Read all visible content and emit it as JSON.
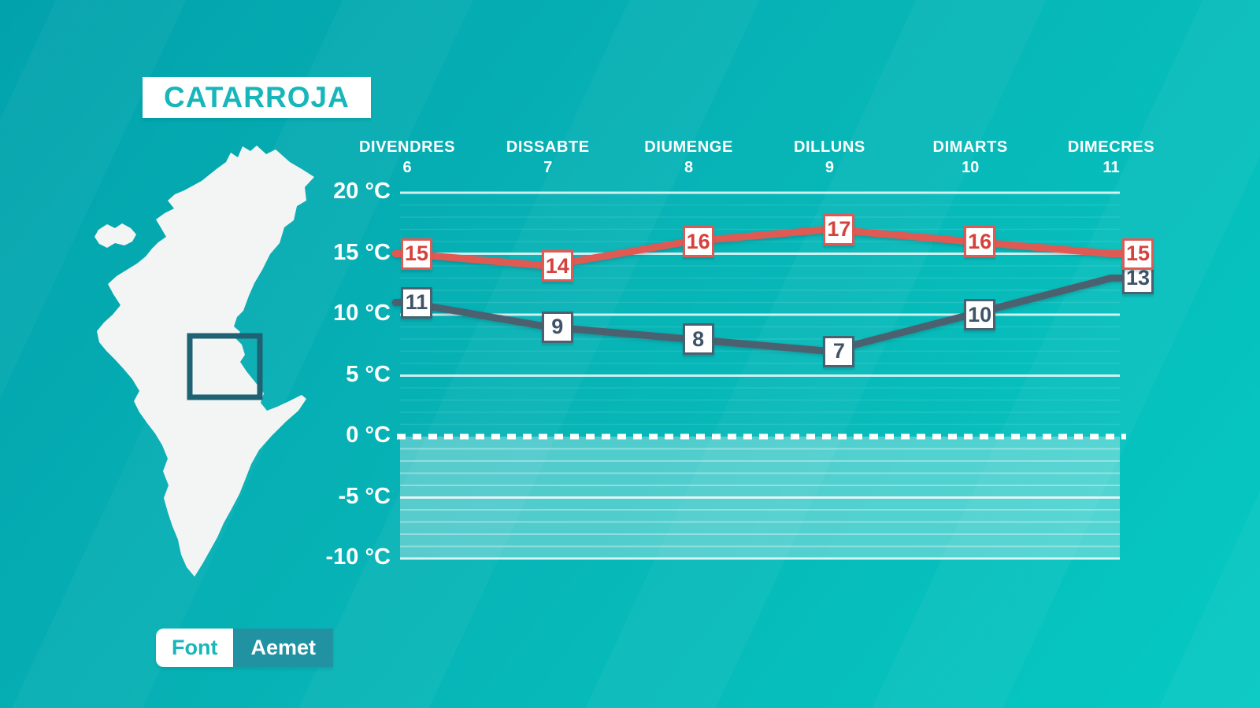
{
  "title": "CATARROJA",
  "source": {
    "label": "Font",
    "value": "Aemet"
  },
  "map": {
    "region": "valencia-community-silhouette",
    "highlight": "catarroja-location-square"
  },
  "colors": {
    "background_start": "#02a2ac",
    "background_end": "#06c9c3",
    "title_text": "#17b6ba",
    "max_series": "#e05a54",
    "min_series": "#4b6170",
    "source_value_bg": "#2092a2",
    "map_fill": "#f3f5f5",
    "map_square_stroke": "#1e6273",
    "grid_color": "#ffffff"
  },
  "chart_data": {
    "type": "line",
    "title": "",
    "categories": [
      "DIVENDRES",
      "DISSABTE",
      "DIUMENGE",
      "DILLUNS",
      "DIMARTS",
      "DIMECRES"
    ],
    "dates": [
      "6",
      "7",
      "8",
      "9",
      "10",
      "11"
    ],
    "series": [
      {
        "name": "max-temperature",
        "color": "#e05a54",
        "label_text_color": "#d5423d",
        "values": [
          15,
          14,
          16,
          17,
          16,
          15
        ]
      },
      {
        "name": "min-temperature",
        "color": "#4b6170",
        "label_text_color": "#3f5468",
        "values": [
          11,
          9,
          8,
          7,
          10,
          13
        ]
      }
    ],
    "unit": "°C",
    "y_ticks": [
      {
        "label": "20 °C",
        "value": 20
      },
      {
        "label": "15 °C",
        "value": 15
      },
      {
        "label": "10 °C",
        "value": 10
      },
      {
        "label": "5 °C",
        "value": 5
      },
      {
        "label": "0 °C",
        "value": 0
      },
      {
        "label": "-5 °C",
        "value": -5
      },
      {
        "label": "-10 °C",
        "value": -10
      }
    ],
    "ylim": [
      -10,
      20
    ],
    "grid": true,
    "minor_grid_step": 1,
    "major_grid_step": 5,
    "freezing_line": 0,
    "subzero_shaded": true,
    "legend_position": "none"
  }
}
